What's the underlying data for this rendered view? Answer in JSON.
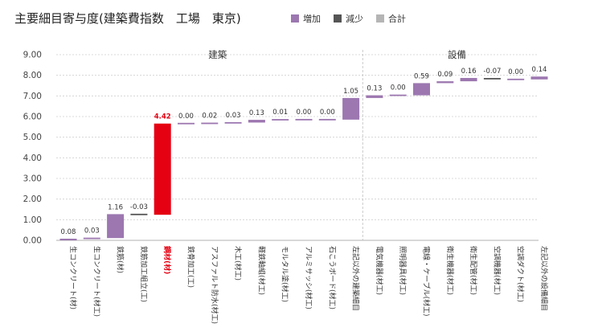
{
  "chart_data": {
    "type": "waterfall",
    "title": "主要細目寄与度(建築費指数　工場　東京)",
    "legend": [
      {
        "label": "増加",
        "color": "#9C77B0"
      },
      {
        "label": "減少",
        "color": "#555555"
      },
      {
        "label": "合計",
        "color": "#B5B5B5"
      }
    ],
    "group_labels": {
      "left": "建築",
      "right": "設備"
    },
    "ylim": [
      0,
      9
    ],
    "yticks": [
      "0.00",
      "1.00",
      "2.00",
      "3.00",
      "4.00",
      "5.00",
      "6.00",
      "7.00",
      "8.00",
      "9.00"
    ],
    "grid": true,
    "highlight_color": "#E50012",
    "categories": [
      "生コンクリート(材)",
      "生コンクリート(材工)",
      "鉄筋(材)",
      "鉄筋加工組立(工)",
      "鋼材(材)",
      "鉄骨加工(工)",
      "アスファルト防水(材工)",
      "木工(材工)",
      "軽鉄軸組(材工)",
      "モルタル塗(材工)",
      "アルミサッシ(材工)",
      "石こうボード(材工)",
      "左記以外の建築細目",
      "電気機器(材工)",
      "照明器具(材工)",
      "電線・ケーブル(材工)",
      "衛生機器(材工)",
      "衛生配管(材工)",
      "空調機器(材工)",
      "空調ダクト(材工)",
      "左記以外の設備細目"
    ],
    "values": [
      0.08,
      0.03,
      1.16,
      -0.03,
      4.42,
      0.0,
      0.02,
      0.03,
      0.13,
      0.01,
      0.0,
      0.0,
      1.05,
      0.13,
      0.0,
      0.59,
      0.09,
      0.16,
      -0.07,
      0.0,
      0.14
    ],
    "value_labels": [
      "0.08",
      "0.03",
      "1.16",
      "-0.03",
      "4.42",
      "0.00",
      "0.02",
      "0.03",
      "0.13",
      "0.01",
      "0.00",
      "0.00",
      "1.05",
      "0.13",
      "0.00",
      "0.59",
      "0.09",
      "0.16",
      "-0.07",
      "0.00",
      "0.14"
    ],
    "highlight_index": 4
  }
}
